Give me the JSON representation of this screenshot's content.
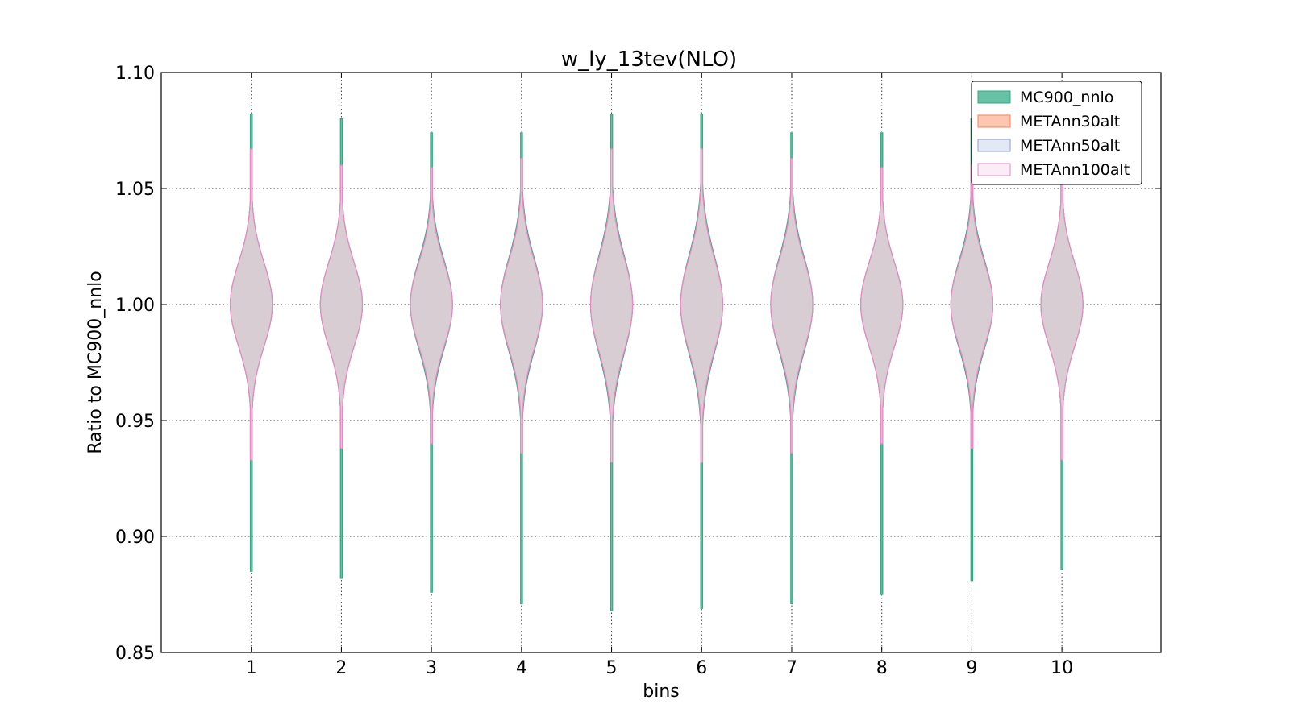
{
  "chart_data": {
    "type": "violin",
    "title": "w_ly_13tev(NLO)",
    "xlabel": "bins",
    "ylabel": "Ratio to MC900_nnlo",
    "ylim": [
      0.85,
      1.1
    ],
    "xlim": [
      0,
      11.1
    ],
    "yticks": [
      "0.85",
      "0.90",
      "0.95",
      "1.00",
      "1.05",
      "1.10"
    ],
    "categories": [
      "1",
      "2",
      "3",
      "4",
      "5",
      "6",
      "7",
      "8",
      "9",
      "10"
    ],
    "grid": true,
    "legend_position": "top-right",
    "series": [
      {
        "name": "MC900_nnlo",
        "fill": "#66c2a5",
        "stroke": "#3aa582",
        "opacity": 1.0,
        "median": [
          1.0,
          1.0,
          1.0,
          1.0,
          1.0,
          1.0,
          1.0,
          1.0,
          1.0,
          1.0
        ],
        "sigma": [
          0.018,
          0.018,
          0.019,
          0.02,
          0.021,
          0.021,
          0.02,
          0.018,
          0.019,
          0.018
        ],
        "ymin": [
          0.885,
          0.882,
          0.876,
          0.871,
          0.868,
          0.869,
          0.871,
          0.875,
          0.881,
          0.886
        ],
        "ymax": [
          1.082,
          1.08,
          1.074,
          1.074,
          1.082,
          1.082,
          1.074,
          1.074,
          1.08,
          1.058
        ]
      },
      {
        "name": "METAnn30alt",
        "fill": "#fc8d62",
        "stroke": "#f4815a",
        "opacity": 0.5,
        "median": [
          1.0,
          1.0,
          1.0,
          1.0,
          1.0,
          1.0,
          1.0,
          1.0,
          1.0,
          1.0
        ],
        "sigma": [
          0.018,
          0.018,
          0.018,
          0.019,
          0.02,
          0.02,
          0.019,
          0.018,
          0.018,
          0.018
        ],
        "ymin": [
          0.933,
          0.938,
          0.94,
          0.936,
          0.932,
          0.932,
          0.936,
          0.94,
          0.938,
          0.933
        ],
        "ymax": [
          1.067,
          1.06,
          1.059,
          1.063,
          1.067,
          1.067,
          1.063,
          1.059,
          1.06,
          1.055
        ]
      },
      {
        "name": "METAnn50alt",
        "fill": "#c6d4ec",
        "stroke": "#8da0cb",
        "opacity": 0.5,
        "median": [
          1.0,
          1.0,
          1.0,
          1.0,
          1.0,
          1.0,
          1.0,
          1.0,
          1.0,
          1.0
        ],
        "sigma": [
          0.018,
          0.018,
          0.018,
          0.019,
          0.02,
          0.02,
          0.019,
          0.018,
          0.018,
          0.018
        ],
        "ymin": [
          0.933,
          0.938,
          0.94,
          0.936,
          0.932,
          0.932,
          0.936,
          0.94,
          0.938,
          0.933
        ],
        "ymax": [
          1.067,
          1.06,
          1.059,
          1.063,
          1.067,
          1.067,
          1.063,
          1.059,
          1.06,
          1.055
        ]
      },
      {
        "name": "METAnn100alt",
        "fill": "#f6dcee",
        "stroke": "#e78ac3",
        "opacity": 0.5,
        "median": [
          1.0,
          1.0,
          1.0,
          1.0,
          1.0,
          1.0,
          1.0,
          1.0,
          1.0,
          1.0
        ],
        "sigma": [
          0.018,
          0.018,
          0.018,
          0.019,
          0.02,
          0.02,
          0.019,
          0.018,
          0.018,
          0.018
        ],
        "ymin": [
          0.933,
          0.938,
          0.94,
          0.936,
          0.932,
          0.932,
          0.936,
          0.94,
          0.938,
          0.933
        ],
        "ymax": [
          1.067,
          1.06,
          1.059,
          1.063,
          1.067,
          1.067,
          1.063,
          1.059,
          1.06,
          1.055
        ]
      }
    ]
  }
}
